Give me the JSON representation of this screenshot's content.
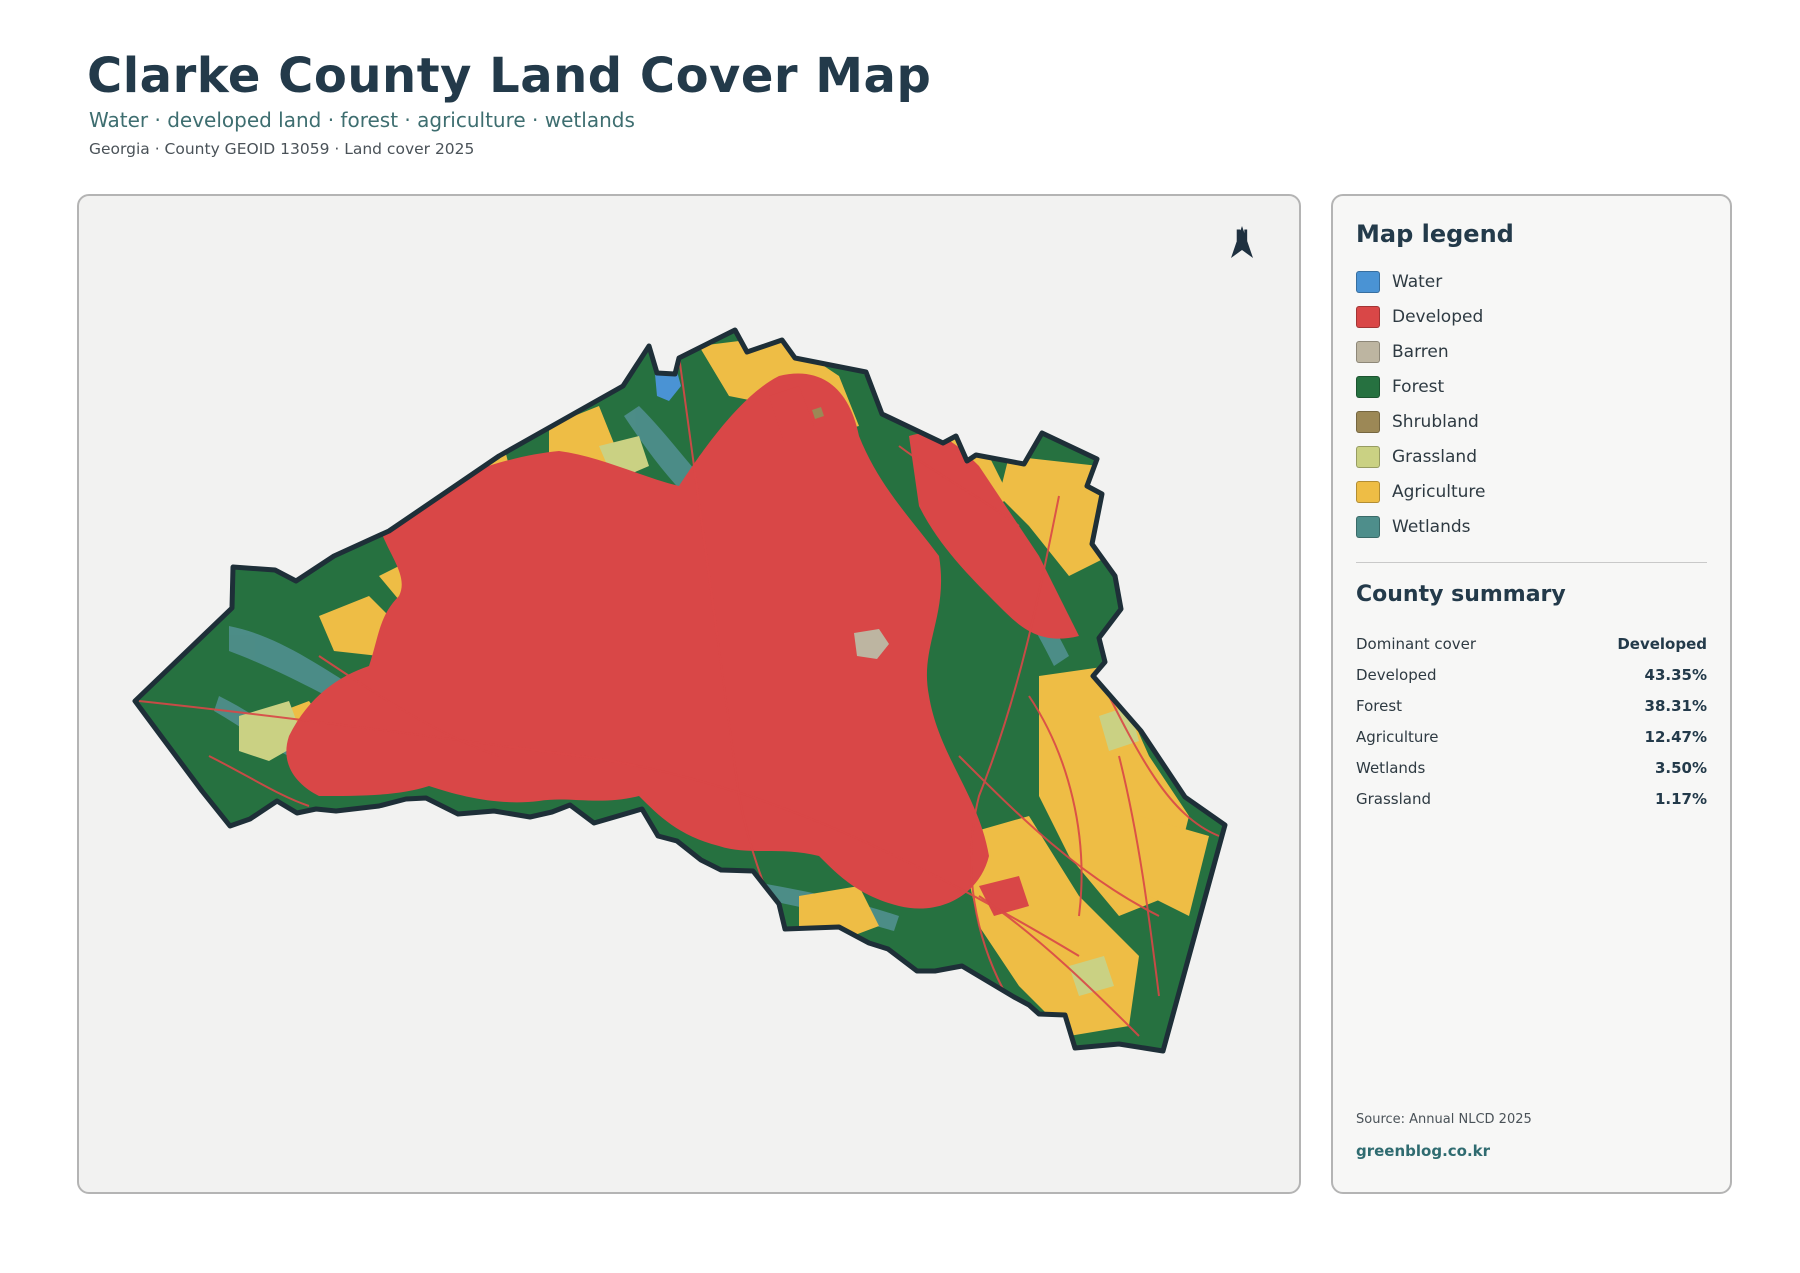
{
  "header": {
    "title": "Clarke County Land Cover Map",
    "subtitle": "Water · developed land · forest · agriculture · wetlands",
    "meta": "Georgia · County GEOID 13059 · Land cover 2025"
  },
  "map": {
    "north_label": "N",
    "north_icon": "north-arrow-icon",
    "colors": {
      "water": "#4a93d4",
      "developed": "#d94747",
      "barren": "#bdb5a1",
      "forest": "#267140",
      "shrubland": "#9c8856",
      "grassland": "#cad183",
      "agriculture": "#eebd45",
      "wetlands": "#4e8e8b",
      "boundary": "#1e2f38",
      "background": "#f2f2f1"
    }
  },
  "legend": {
    "title": "Map legend",
    "items": [
      {
        "label": "Water",
        "color": "#4a93d4"
      },
      {
        "label": "Developed",
        "color": "#d94747"
      },
      {
        "label": "Barren",
        "color": "#bdb5a1"
      },
      {
        "label": "Forest",
        "color": "#267140"
      },
      {
        "label": "Shrubland",
        "color": "#9c8856"
      },
      {
        "label": "Grassland",
        "color": "#cad183"
      },
      {
        "label": "Agriculture",
        "color": "#eebd45"
      },
      {
        "label": "Wetlands",
        "color": "#4e8e8b"
      }
    ]
  },
  "summary": {
    "title": "County summary",
    "rows": [
      {
        "label": "Dominant cover",
        "value": "Developed"
      },
      {
        "label": "Developed",
        "value": "43.35%"
      },
      {
        "label": "Forest",
        "value": "38.31%"
      },
      {
        "label": "Agriculture",
        "value": "12.47%"
      },
      {
        "label": "Wetlands",
        "value": "3.50%"
      },
      {
        "label": "Grassland",
        "value": "1.17%"
      }
    ]
  },
  "footer": {
    "source": "Source: Annual NLCD 2025",
    "site": "greenblog.co.kr"
  }
}
